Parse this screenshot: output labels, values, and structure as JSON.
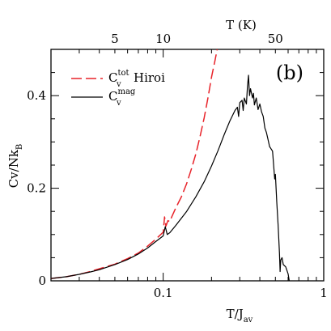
{
  "chart_data": {
    "type": "line",
    "panel_label": "(b)",
    "xlabel": "T/J",
    "xlabel_sub": "av",
    "ylabel": "Cv/Nk",
    "ylabel_sub": "B",
    "x2label": "T (K)",
    "xscale": "log",
    "xlim": [
      0.02,
      1
    ],
    "ylim": [
      0,
      0.5
    ],
    "x_ticks": [
      {
        "v": 0.1,
        "label": "0.1"
      },
      {
        "v": 1,
        "label": "1"
      }
    ],
    "y_ticks": [
      {
        "v": 0,
        "label": "0"
      },
      {
        "v": 0.2,
        "label": "0.2"
      },
      {
        "v": 0.4,
        "label": "0.4"
      }
    ],
    "x2_ticks": [
      {
        "v": 0.05,
        "label": "5"
      },
      {
        "v": 0.1,
        "label": "10"
      },
      {
        "v": 0.5,
        "label": "50"
      }
    ],
    "colors": {
      "axis": "#000000",
      "hiroi": "#e8232a",
      "mag": "#000000"
    },
    "legend": [
      {
        "base": "C",
        "sup": "tot",
        "sub": "v",
        "text": "Hiroi",
        "color": "#e8232a",
        "dash": true
      },
      {
        "base": "C",
        "sup": "mag",
        "sub": "v",
        "text": "",
        "color": "#000000",
        "dash": false
      }
    ],
    "series": [
      {
        "key": "hiroi",
        "points": [
          [
            0.02,
            0.005
          ],
          [
            0.025,
            0.009
          ],
          [
            0.03,
            0.014
          ],
          [
            0.035,
            0.02
          ],
          [
            0.04,
            0.026
          ],
          [
            0.05,
            0.036
          ],
          [
            0.06,
            0.048
          ],
          [
            0.07,
            0.06
          ],
          [
            0.08,
            0.075
          ],
          [
            0.09,
            0.09
          ],
          [
            0.1,
            0.105
          ],
          [
            0.102,
            0.138
          ],
          [
            0.104,
            0.118
          ],
          [
            0.107,
            0.13
          ],
          [
            0.11,
            0.128
          ],
          [
            0.113,
            0.138
          ],
          [
            0.12,
            0.158
          ],
          [
            0.13,
            0.182
          ],
          [
            0.14,
            0.21
          ],
          [
            0.15,
            0.242
          ],
          [
            0.16,
            0.275
          ],
          [
            0.17,
            0.313
          ],
          [
            0.18,
            0.352
          ],
          [
            0.19,
            0.395
          ],
          [
            0.2,
            0.44
          ],
          [
            0.21,
            0.475
          ],
          [
            0.217,
            0.5
          ]
        ]
      },
      {
        "key": "mag",
        "points": [
          [
            0.02,
            0.005
          ],
          [
            0.025,
            0.009
          ],
          [
            0.03,
            0.014
          ],
          [
            0.035,
            0.019
          ],
          [
            0.04,
            0.024
          ],
          [
            0.05,
            0.035
          ],
          [
            0.06,
            0.046
          ],
          [
            0.07,
            0.058
          ],
          [
            0.08,
            0.071
          ],
          [
            0.09,
            0.085
          ],
          [
            0.1,
            0.097
          ],
          [
            0.103,
            0.117
          ],
          [
            0.106,
            0.1
          ],
          [
            0.11,
            0.104
          ],
          [
            0.12,
            0.12
          ],
          [
            0.14,
            0.15
          ],
          [
            0.16,
            0.182
          ],
          [
            0.18,
            0.214
          ],
          [
            0.2,
            0.248
          ],
          [
            0.22,
            0.282
          ],
          [
            0.24,
            0.316
          ],
          [
            0.26,
            0.345
          ],
          [
            0.28,
            0.368
          ],
          [
            0.29,
            0.375
          ],
          [
            0.295,
            0.355
          ],
          [
            0.3,
            0.385
          ],
          [
            0.31,
            0.39
          ],
          [
            0.315,
            0.368
          ],
          [
            0.32,
            0.395
          ],
          [
            0.33,
            0.382
          ],
          [
            0.335,
            0.42
          ],
          [
            0.34,
            0.444
          ],
          [
            0.345,
            0.4
          ],
          [
            0.35,
            0.415
          ],
          [
            0.36,
            0.395
          ],
          [
            0.365,
            0.405
          ],
          [
            0.37,
            0.38
          ],
          [
            0.38,
            0.395
          ],
          [
            0.39,
            0.37
          ],
          [
            0.4,
            0.382
          ],
          [
            0.41,
            0.365
          ],
          [
            0.42,
            0.355
          ],
          [
            0.43,
            0.33
          ],
          [
            0.44,
            0.32
          ],
          [
            0.45,
            0.305
          ],
          [
            0.46,
            0.29
          ],
          [
            0.47,
            0.285
          ],
          [
            0.48,
            0.28
          ],
          [
            0.49,
            0.24
          ],
          [
            0.495,
            0.22
          ],
          [
            0.5,
            0.23
          ],
          [
            0.51,
            0.17
          ],
          [
            0.52,
            0.12
          ],
          [
            0.53,
            0.06
          ],
          [
            0.535,
            0.02
          ],
          [
            0.54,
            0.045
          ],
          [
            0.55,
            0.05
          ],
          [
            0.56,
            0.035
          ],
          [
            0.58,
            0.03
          ],
          [
            0.6,
            0.015
          ],
          [
            0.61,
            0.0
          ]
        ]
      }
    ]
  }
}
